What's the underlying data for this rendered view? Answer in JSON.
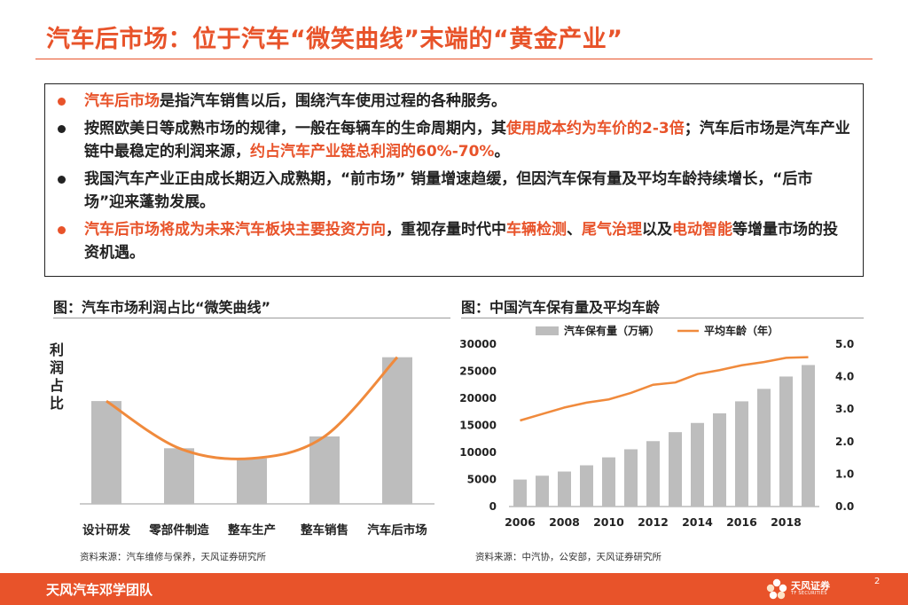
{
  "page": {
    "title": "汽车后市场：位于汽车“微笑曲线”末端的“黄金产业”",
    "page_number": "2",
    "accent_color": "#e8532a"
  },
  "bullets": [
    {
      "marker_color": "orange",
      "segments": [
        {
          "text": "汽车后市场",
          "hl": true
        },
        {
          "text": "是指汽车销售以后，围绕汽车使用过程的各种服务。",
          "hl": false
        }
      ]
    },
    {
      "marker_color": "black",
      "segments": [
        {
          "text": "按照欧美日等成熟市场的规律，一般在每辆车的生命周期内，其",
          "hl": false
        },
        {
          "text": "使用成本约为车价的2-3倍",
          "hl": true
        },
        {
          "text": "；汽车后市场是汽车产业链中最稳定的利润来源，",
          "hl": false
        },
        {
          "text": "约占汽车产业链总利润的60%-70%",
          "hl": true
        },
        {
          "text": "。",
          "hl": false
        }
      ]
    },
    {
      "marker_color": "black",
      "segments": [
        {
          "text": "我国汽车产业正由成长期迈入成熟期，“前市场” 销量增速趋缓，但因汽车保有量及平均车龄持续增长，“后市场”迎来蓬勃发展。",
          "hl": false
        }
      ]
    },
    {
      "marker_color": "orange",
      "segments": [
        {
          "text": "汽车后市场将成为未来汽车板块主要投资方向",
          "hl": true
        },
        {
          "text": "，重视存量时代中",
          "hl": false
        },
        {
          "text": "车辆检测",
          "hl": true
        },
        {
          "text": "、",
          "hl": false
        },
        {
          "text": "尾气治理",
          "hl": true
        },
        {
          "text": "以及",
          "hl": false
        },
        {
          "text": "电动智能",
          "hl": true
        },
        {
          "text": "等增量市场的投资机遇。",
          "hl": false
        }
      ]
    }
  ],
  "figures": {
    "left": {
      "title": "图：汽车市场利润占比“微笑曲线”",
      "source": "资料来源：汽车维修与保养，天风证券研究所"
    },
    "right": {
      "title": "图：中国汽车保有量及平均车龄",
      "source": "资料来源：中汽协，公安部，天风证券研究所"
    }
  },
  "chart_data": [
    {
      "type": "bar",
      "ylabel": "利润占比",
      "categories": [
        "设计研发",
        "零部件制造",
        "整车生产",
        "整车销售",
        "汽车后市场"
      ],
      "values": [
        0.61,
        0.33,
        0.27,
        0.4,
        0.87
      ],
      "value_scale": "relative profit share (unlabeled axis)",
      "overlay_line": {
        "name": "",
        "smooth": true,
        "color": "#f08a3c"
      },
      "bar_color": "#bdbdbd",
      "grid": false
    },
    {
      "type": "bar",
      "legend_position": "top",
      "x": [
        2006,
        2007,
        2008,
        2009,
        2010,
        2011,
        2012,
        2013,
        2014,
        2015,
        2016,
        2017,
        2018,
        2019
      ],
      "x_ticks": [
        "2006",
        "2008",
        "2010",
        "2012",
        "2014",
        "2016",
        "2018"
      ],
      "series": [
        {
          "name": "汽车保有量（万辆）",
          "type": "bar",
          "axis": "left",
          "color": "#bdbdbd",
          "values": [
            4985,
            5697,
            6467,
            7619,
            9086,
            10578,
            12089,
            13741,
            15447,
            17228,
            19440,
            21743,
            24028,
            26150
          ]
        },
        {
          "name": "平均车龄（年）",
          "type": "line",
          "axis": "right",
          "color": "#f08a3c",
          "values": [
            2.65,
            2.85,
            3.05,
            3.2,
            3.3,
            3.5,
            3.75,
            3.82,
            4.08,
            4.2,
            4.35,
            4.45,
            4.58,
            4.6
          ]
        }
      ],
      "ylim_left": [
        0,
        30000
      ],
      "yticks_left": [
        "0",
        "5000",
        "10000",
        "15000",
        "20000",
        "25000",
        "30000"
      ],
      "ylim_right": [
        0.0,
        5.0
      ],
      "yticks_right": [
        "0.0",
        "1.0",
        "2.0",
        "3.0",
        "4.0",
        "5.0"
      ],
      "grid": false
    }
  ],
  "footer": {
    "team": "天风汽车邓学团队",
    "logo_cn": "天风证券",
    "logo_en": "TF SECURITIES"
  }
}
